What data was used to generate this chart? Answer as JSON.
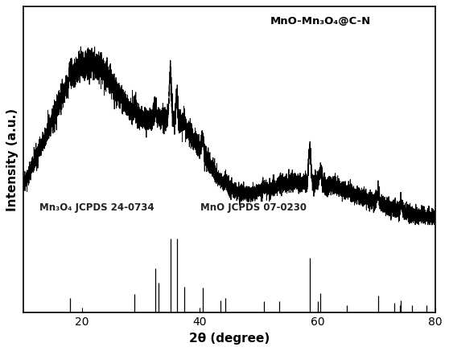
{
  "xlabel": "2θ (degree)",
  "ylabel": "Intensity (a.u.)",
  "xlim": [
    10,
    80
  ],
  "ylim": [
    0,
    1.15
  ],
  "xticks": [
    20,
    40,
    60,
    80
  ],
  "label_main": "MnO-Mn₃O₄@C-N",
  "label_mn3o4": "Mn₃O₄ JCPDS 24-0734",
  "label_mno": "MnO JCPDS 07-0230",
  "background_color": "#ffffff",
  "line_color": "#000000",
  "mn3o4_stick_pos": [
    18.0,
    28.9,
    32.4,
    33.0,
    36.1,
    37.3,
    44.4,
    50.9,
    53.5,
    60.0,
    65.0,
    74.0,
    78.5
  ],
  "mn3o4_stick_h": [
    0.04,
    0.05,
    0.12,
    0.08,
    0.2,
    0.07,
    0.04,
    0.03,
    0.03,
    0.03,
    0.02,
    0.02,
    0.02
  ],
  "mno_stick_pos": [
    35.0,
    40.5,
    43.5,
    58.7,
    60.5,
    70.3,
    73.0,
    74.2,
    76.0
  ],
  "mno_stick_h": [
    0.3,
    0.1,
    0.05,
    0.22,
    0.08,
    0.07,
    0.04,
    0.05,
    0.03
  ],
  "seed": 42
}
